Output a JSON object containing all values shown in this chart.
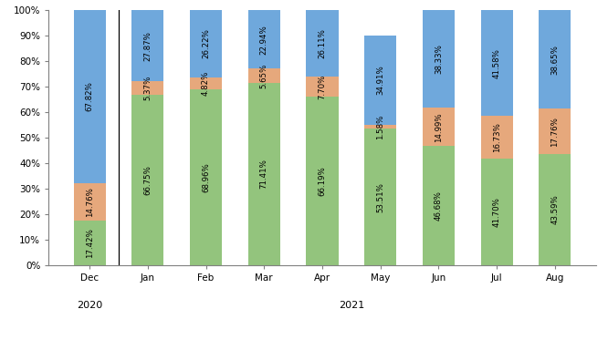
{
  "categories": [
    "Dec",
    "Jan",
    "Feb",
    "Mar",
    "Apr",
    "May",
    "Jun",
    "Jul",
    "Aug"
  ],
  "medicare_only": [
    17.42,
    66.75,
    68.96,
    71.41,
    66.19,
    53.51,
    46.68,
    41.7,
    43.59
  ],
  "pharmacy_only": [
    14.76,
    5.37,
    4.82,
    5.65,
    7.7,
    1.58,
    14.99,
    16.73,
    17.76
  ],
  "both": [
    67.82,
    27.87,
    26.22,
    22.94,
    26.11,
    34.91,
    38.33,
    41.58,
    38.65
  ],
  "medicare_only_labels": [
    "17.42%",
    "66.75%",
    "68.96%",
    "71.41%",
    "66.19%",
    "53.51%",
    "46.68%",
    "41.70%",
    "43.59%"
  ],
  "pharmacy_only_labels": [
    "14.76%",
    "5.37%",
    "4.82%",
    "5.65%",
    "7.70%",
    "1.58%",
    "14.99%",
    "16.73%",
    "17.76%"
  ],
  "both_labels": [
    "67.82%",
    "27.87%",
    "26.22%",
    "22.94%",
    "26.11%",
    "34.91%",
    "38.33%",
    "41.58%",
    "38.65%"
  ],
  "color_medicare": "#93C47D",
  "color_pharmacy": "#E6A87C",
  "color_both": "#6FA8DC",
  "bar_width": 0.55,
  "figsize": [
    6.66,
    3.73
  ],
  "dpi": 100,
  "font_size_labels": 6.2,
  "font_size_ticks": 7.5,
  "font_size_legend": 7.5,
  "font_size_year": 8
}
